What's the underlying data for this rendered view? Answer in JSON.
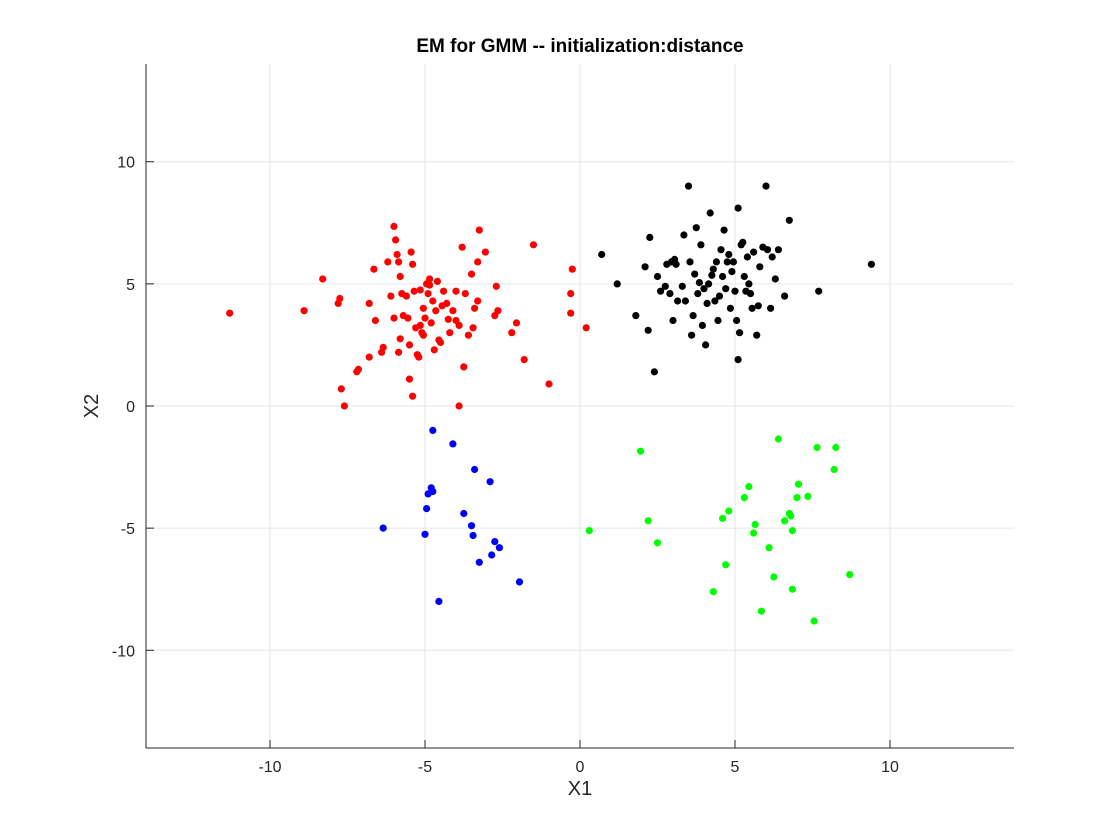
{
  "chart_data": {
    "type": "scatter",
    "title": "EM for GMM -- initialization:distance",
    "xlabel": "X1",
    "ylabel": "X2",
    "xlim": [
      -14,
      14
    ],
    "ylim": [
      -14,
      14
    ],
    "xticks": [
      -10,
      -5,
      0,
      5,
      10
    ],
    "yticks": [
      -10,
      -5,
      0,
      5,
      10
    ],
    "grid": true,
    "legend": "none",
    "series": [
      {
        "color": "#ff0000",
        "points": [
          [
            -11.3,
            3.8
          ],
          [
            -8.9,
            3.9
          ],
          [
            -8.3,
            5.2
          ],
          [
            -7.8,
            4.2
          ],
          [
            -7.75,
            4.4
          ],
          [
            -7.7,
            0.7
          ],
          [
            -7.6,
            0.0
          ],
          [
            -7.2,
            1.4
          ],
          [
            -7.15,
            1.5
          ],
          [
            -6.8,
            2.0
          ],
          [
            -6.8,
            4.2
          ],
          [
            -6.65,
            5.6
          ],
          [
            -6.6,
            3.5
          ],
          [
            -6.4,
            2.2
          ],
          [
            -6.35,
            2.4
          ],
          [
            -6.2,
            5.9
          ],
          [
            -6.0,
            7.35
          ],
          [
            -5.95,
            6.8
          ],
          [
            -5.9,
            6.2
          ],
          [
            -5.85,
            5.9
          ],
          [
            -5.8,
            5.3
          ],
          [
            -5.75,
            4.6
          ],
          [
            -5.7,
            3.7
          ],
          [
            -5.6,
            4.5
          ],
          [
            -5.55,
            3.6
          ],
          [
            -5.5,
            2.5
          ],
          [
            -5.45,
            6.3
          ],
          [
            -5.4,
            5.8
          ],
          [
            -5.35,
            4.7
          ],
          [
            -5.3,
            3.2
          ],
          [
            -5.25,
            2.1
          ],
          [
            -5.2,
            2.0
          ],
          [
            -5.15,
            3.3
          ],
          [
            -5.1,
            3.0
          ],
          [
            -5.05,
            4.0
          ],
          [
            -5.0,
            3.6
          ],
          [
            -4.95,
            5.0
          ],
          [
            -4.9,
            4.6
          ],
          [
            -4.85,
            5.2
          ],
          [
            -4.8,
            3.4
          ],
          [
            -4.75,
            4.3
          ],
          [
            -4.7,
            2.3
          ],
          [
            -4.65,
            3.9
          ],
          [
            -4.6,
            5.1
          ],
          [
            -4.55,
            2.7
          ],
          [
            -4.5,
            2.6
          ],
          [
            -4.4,
            4.7
          ],
          [
            -4.3,
            4.2
          ],
          [
            -4.2,
            3.0
          ],
          [
            -4.1,
            3.9
          ],
          [
            -4.0,
            4.7
          ],
          [
            -3.9,
            3.3
          ],
          [
            -3.8,
            6.5
          ],
          [
            -3.7,
            4.6
          ],
          [
            -3.6,
            2.9
          ],
          [
            -3.5,
            5.4
          ],
          [
            -3.45,
            3.2
          ],
          [
            -3.4,
            4.0
          ],
          [
            -3.3,
            5.9
          ],
          [
            -3.25,
            7.2
          ],
          [
            -3.05,
            6.3
          ],
          [
            -2.75,
            3.7
          ],
          [
            -2.7,
            4.9
          ],
          [
            -2.65,
            3.9
          ],
          [
            -2.2,
            3.0
          ],
          [
            -2.05,
            3.4
          ],
          [
            -1.8,
            1.9
          ],
          [
            -1.5,
            6.6
          ],
          [
            -1.0,
            0.9
          ],
          [
            -0.3,
            4.6
          ],
          [
            -0.25,
            5.6
          ],
          [
            -0.3,
            3.8
          ],
          [
            0.2,
            3.2
          ],
          [
            -3.9,
            0.0
          ],
          [
            -3.75,
            1.6
          ],
          [
            -5.5,
            1.1
          ],
          [
            -5.4,
            0.4
          ],
          [
            -5.85,
            2.2
          ],
          [
            -6.0,
            3.6
          ],
          [
            -4.0,
            3.5
          ],
          [
            -4.45,
            4.1
          ],
          [
            -5.15,
            4.75
          ],
          [
            -4.85,
            4.95
          ],
          [
            -5.8,
            2.75
          ],
          [
            -3.3,
            4.3
          ],
          [
            -6.1,
            4.5
          ],
          [
            -5.05,
            2.9
          ],
          [
            -4.25,
            3.55
          ]
        ]
      },
      {
        "color": "#000000",
        "points": [
          [
            0.7,
            6.2
          ],
          [
            1.2,
            5.0
          ],
          [
            1.8,
            3.7
          ],
          [
            2.1,
            5.7
          ],
          [
            2.2,
            3.1
          ],
          [
            2.25,
            6.9
          ],
          [
            2.4,
            1.4
          ],
          [
            2.5,
            5.3
          ],
          [
            2.6,
            4.7
          ],
          [
            2.75,
            4.9
          ],
          [
            2.8,
            5.8
          ],
          [
            2.9,
            4.6
          ],
          [
            2.95,
            5.9
          ],
          [
            3.0,
            3.5
          ],
          [
            3.1,
            5.8
          ],
          [
            3.15,
            4.3
          ],
          [
            3.3,
            4.9
          ],
          [
            3.35,
            7.0
          ],
          [
            3.4,
            4.3
          ],
          [
            3.5,
            9.0
          ],
          [
            3.55,
            5.9
          ],
          [
            3.6,
            2.9
          ],
          [
            3.65,
            3.7
          ],
          [
            3.7,
            5.4
          ],
          [
            3.75,
            7.3
          ],
          [
            3.8,
            4.6
          ],
          [
            3.9,
            6.6
          ],
          [
            3.95,
            3.3
          ],
          [
            4.0,
            4.8
          ],
          [
            4.05,
            2.5
          ],
          [
            4.1,
            4.2
          ],
          [
            4.15,
            5.0
          ],
          [
            4.2,
            7.9
          ],
          [
            4.3,
            5.6
          ],
          [
            4.35,
            4.3
          ],
          [
            4.4,
            5.9
          ],
          [
            4.45,
            3.5
          ],
          [
            4.5,
            4.5
          ],
          [
            4.55,
            6.4
          ],
          [
            4.6,
            5.3
          ],
          [
            4.65,
            7.2
          ],
          [
            4.7,
            4.8
          ],
          [
            4.75,
            5.9
          ],
          [
            4.8,
            6.2
          ],
          [
            4.85,
            4.0
          ],
          [
            4.9,
            5.5
          ],
          [
            4.95,
            5.9
          ],
          [
            5.0,
            4.7
          ],
          [
            5.05,
            3.5
          ],
          [
            5.1,
            8.1
          ],
          [
            5.15,
            3.0
          ],
          [
            5.2,
            6.6
          ],
          [
            5.25,
            6.7
          ],
          [
            5.3,
            5.3
          ],
          [
            5.35,
            4.7
          ],
          [
            5.4,
            6.1
          ],
          [
            5.5,
            4.6
          ],
          [
            5.55,
            4.0
          ],
          [
            5.6,
            6.3
          ],
          [
            5.7,
            2.9
          ],
          [
            5.75,
            4.1
          ],
          [
            5.8,
            5.7
          ],
          [
            5.9,
            6.5
          ],
          [
            6.0,
            9.0
          ],
          [
            6.05,
            6.4
          ],
          [
            6.15,
            4.0
          ],
          [
            6.2,
            6.1
          ],
          [
            6.3,
            5.2
          ],
          [
            6.4,
            6.4
          ],
          [
            6.6,
            4.5
          ],
          [
            6.75,
            7.6
          ],
          [
            7.7,
            4.7
          ],
          [
            9.4,
            5.8
          ],
          [
            5.1,
            1.9
          ],
          [
            3.05,
            6.0
          ],
          [
            4.25,
            5.35
          ],
          [
            3.85,
            5.05
          ],
          [
            5.45,
            5.0
          ]
        ]
      },
      {
        "color": "#0000ff",
        "points": [
          [
            -6.35,
            -5.0
          ],
          [
            -5.0,
            -5.25
          ],
          [
            -4.95,
            -4.2
          ],
          [
            -4.9,
            -3.6
          ],
          [
            -4.8,
            -3.35
          ],
          [
            -4.75,
            -3.5
          ],
          [
            -4.75,
            -1.0
          ],
          [
            -4.55,
            -8.0
          ],
          [
            -4.1,
            -1.55
          ],
          [
            -3.75,
            -4.4
          ],
          [
            -3.5,
            -4.9
          ],
          [
            -3.45,
            -5.3
          ],
          [
            -3.4,
            -2.6
          ],
          [
            -3.25,
            -6.4
          ],
          [
            -2.9,
            -3.1
          ],
          [
            -2.85,
            -6.1
          ],
          [
            -2.75,
            -5.55
          ],
          [
            -2.6,
            -5.8
          ],
          [
            -1.95,
            -7.2
          ]
        ]
      },
      {
        "color": "#00ff00",
        "points": [
          [
            0.3,
            -5.1
          ],
          [
            1.95,
            -1.85
          ],
          [
            2.2,
            -4.7
          ],
          [
            2.5,
            -5.6
          ],
          [
            4.3,
            -7.6
          ],
          [
            4.6,
            -4.6
          ],
          [
            4.7,
            -6.5
          ],
          [
            4.8,
            -4.3
          ],
          [
            5.3,
            -3.75
          ],
          [
            5.45,
            -3.3
          ],
          [
            5.6,
            -5.2
          ],
          [
            5.65,
            -4.85
          ],
          [
            5.85,
            -8.4
          ],
          [
            6.1,
            -5.8
          ],
          [
            6.25,
            -7.0
          ],
          [
            6.4,
            -1.35
          ],
          [
            6.6,
            -4.7
          ],
          [
            6.75,
            -4.4
          ],
          [
            6.8,
            -4.5
          ],
          [
            6.85,
            -5.1
          ],
          [
            6.85,
            -7.5
          ],
          [
            7.0,
            -3.75
          ],
          [
            7.05,
            -3.2
          ],
          [
            7.35,
            -3.7
          ],
          [
            7.55,
            -8.8
          ],
          [
            7.65,
            -1.7
          ],
          [
            8.2,
            -2.6
          ],
          [
            8.25,
            -1.7
          ],
          [
            8.7,
            -6.9
          ]
        ]
      }
    ]
  }
}
